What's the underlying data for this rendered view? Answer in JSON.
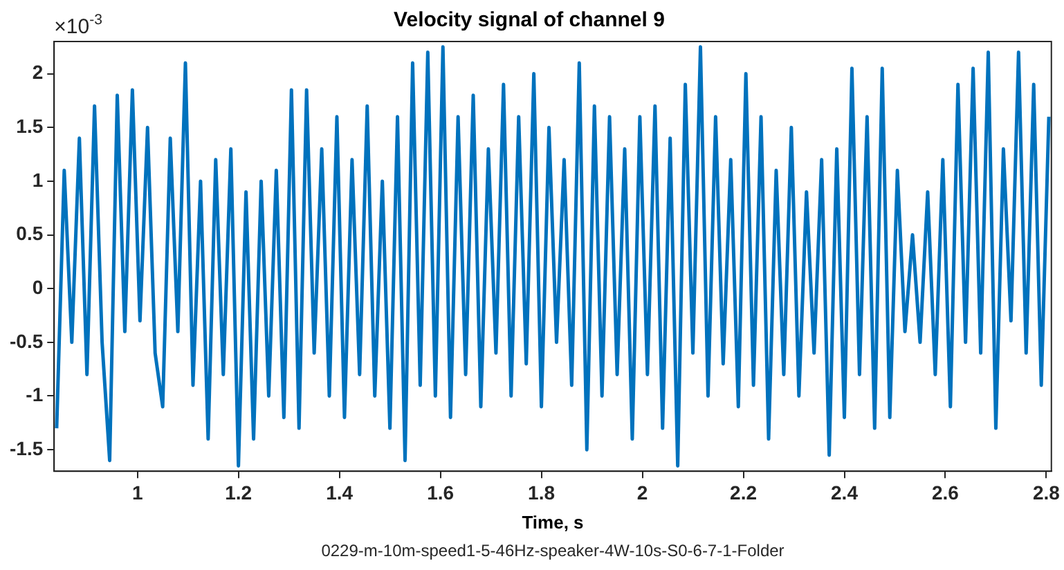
{
  "chart_data": {
    "type": "line",
    "title": "Velocity signal of channel 9",
    "xlabel": "Time, s",
    "annotations": [
      "×10$^{-3}$",
      "0229-m-10m-speed1-5-46Hz-speaker-4W-10s-S0-6-7-1-Folder"
    ],
    "x": [
      0.84,
      0.855,
      0.87,
      0.885,
      0.9,
      0.915,
      0.93,
      0.945,
      0.96,
      0.975,
      0.99,
      1.005,
      1.02,
      1.035,
      1.05,
      1.065,
      1.08,
      1.095,
      1.11,
      1.125,
      1.14,
      1.155,
      1.17,
      1.185,
      1.2,
      1.215,
      1.23,
      1.245,
      1.26,
      1.275,
      1.29,
      1.305,
      1.32,
      1.335,
      1.35,
      1.365,
      1.38,
      1.395,
      1.41,
      1.425,
      1.44,
      1.455,
      1.47,
      1.485,
      1.5,
      1.515,
      1.53,
      1.545,
      1.56,
      1.575,
      1.59,
      1.605,
      1.62,
      1.635,
      1.65,
      1.665,
      1.68,
      1.695,
      1.71,
      1.725,
      1.74,
      1.755,
      1.77,
      1.785,
      1.8,
      1.815,
      1.83,
      1.845,
      1.86,
      1.875,
      1.89,
      1.905,
      1.92,
      1.935,
      1.95,
      1.965,
      1.98,
      1.995,
      2.01,
      2.025,
      2.04,
      2.055,
      2.07,
      2.085,
      2.1,
      2.115,
      2.13,
      2.145,
      2.16,
      2.175,
      2.19,
      2.205,
      2.22,
      2.235,
      2.25,
      2.265,
      2.28,
      2.295,
      2.31,
      2.325,
      2.34,
      2.355,
      2.37,
      2.385,
      2.4,
      2.415,
      2.43,
      2.445,
      2.46,
      2.475,
      2.49,
      2.505,
      2.52,
      2.535,
      2.55,
      2.565,
      2.58,
      2.595,
      2.61,
      2.625,
      2.64,
      2.655,
      2.67,
      2.685,
      2.7,
      2.715,
      2.73,
      2.745,
      2.76,
      2.775,
      2.79,
      2.805
    ],
    "series": [
      {
        "color": "#0072bd",
        "values": [
          -1.3,
          1.1,
          -0.5,
          1.4,
          -0.8,
          1.7,
          -0.5,
          -1.6,
          1.8,
          -0.4,
          1.85,
          -0.3,
          1.5,
          -0.6,
          -1.1,
          1.4,
          -0.4,
          2.1,
          -0.9,
          1.0,
          -1.4,
          1.2,
          -0.8,
          1.3,
          -1.65,
          0.9,
          -1.4,
          1.0,
          -1.0,
          1.1,
          -1.2,
          1.85,
          -1.3,
          1.85,
          -0.6,
          1.3,
          -1.0,
          1.6,
          -1.2,
          1.2,
          -0.8,
          1.7,
          -1.0,
          1.0,
          -1.3,
          1.6,
          -1.6,
          2.1,
          -0.9,
          2.2,
          -1.0,
          2.25,
          -1.2,
          1.6,
          -0.8,
          1.8,
          -1.1,
          1.3,
          -0.6,
          1.9,
          -1.0,
          1.6,
          -0.7,
          2.0,
          -1.1,
          1.5,
          -0.5,
          1.2,
          -0.9,
          2.1,
          -1.5,
          1.7,
          -1.0,
          1.6,
          -0.8,
          1.3,
          -1.4,
          1.6,
          -0.8,
          1.7,
          -1.3,
          1.4,
          -1.65,
          1.9,
          -0.6,
          2.25,
          -1.0,
          1.6,
          -0.7,
          1.2,
          -1.1,
          2.0,
          -0.9,
          1.6,
          -1.4,
          1.1,
          -0.8,
          1.5,
          -1.0,
          0.9,
          -0.6,
          1.2,
          -1.55,
          1.3,
          -1.2,
          2.05,
          -0.8,
          1.6,
          -1.3,
          2.05,
          -1.2,
          1.1,
          -0.4,
          0.5,
          -0.5,
          0.9,
          -0.8,
          1.2,
          -1.1,
          1.9,
          -0.5,
          2.05,
          -0.6,
          2.2,
          -1.3,
          1.3,
          -0.3,
          2.2,
          -0.6,
          1.9,
          -0.9,
          1.6
        ]
      }
    ],
    "xlim": [
      0.835,
      2.81
    ],
    "xticks": [
      1,
      1.2,
      1.4,
      1.6,
      1.8,
      2,
      2.2,
      2.4,
      2.6,
      2.8
    ],
    "ylim": [
      -1.7,
      2.3
    ],
    "yticks": [
      -1.5,
      -1,
      -0.5,
      0,
      0.5,
      1,
      1.5,
      2
    ],
    "grid": false,
    "legend": false,
    "line_style": "solid",
    "marker": "none"
  }
}
